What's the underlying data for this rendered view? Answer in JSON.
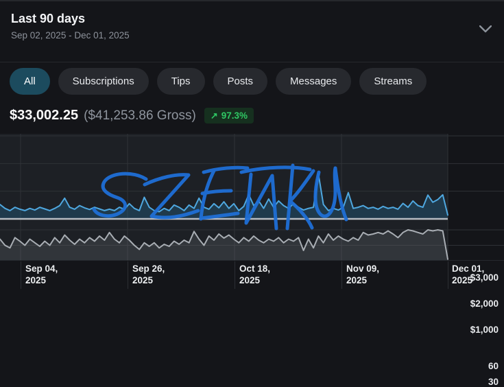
{
  "header": {
    "title": "Last 90 days",
    "date_range": "Sep 02, 2025 - Dec 01, 2025"
  },
  "tabs": [
    {
      "label": "All",
      "active": true
    },
    {
      "label": "Subscriptions",
      "active": false
    },
    {
      "label": "Tips",
      "active": false
    },
    {
      "label": "Posts",
      "active": false
    },
    {
      "label": "Messages",
      "active": false
    },
    {
      "label": "Streams",
      "active": false
    }
  ],
  "summary": {
    "net_total": "$33,002.25",
    "gross_total": "($41,253.86 Gross)",
    "change_arrow": "↗",
    "change_percent": "97.3%"
  },
  "colors": {
    "accent_tab": "#1c4b5e",
    "positive_green": "#2fc864",
    "blue_line": "#4fa8e0",
    "gray_line": "#a9aeb4",
    "baseline": "#b7bcc2",
    "plot_bg": "#1d2025",
    "grid": "#2f3237"
  },
  "chart_data": {
    "type": "line",
    "title": "",
    "x_start": "Sep 02, 2025",
    "x_end": "Dec 01, 2025",
    "x_tick_labels": [
      {
        "l1": "Sep 04,",
        "l2": "2025"
      },
      {
        "l1": "Sep 26,",
        "l2": "2025"
      },
      {
        "l1": "Oct 18,",
        "l2": "2025"
      },
      {
        "l1": "Nov 09,",
        "l2": "2025"
      },
      {
        "l1": "Dec 01,",
        "l2": "2025"
      }
    ],
    "upper": {
      "name": "daily net earnings (USD)",
      "y_tick_labels": [
        "$3,000",
        "$2,000",
        "$1,000"
      ],
      "y_tick_values": [
        3000,
        2000,
        1000
      ],
      "ylim": [
        0,
        3000
      ],
      "values": [
        520,
        380,
        300,
        420,
        350,
        300,
        380,
        320,
        420,
        360,
        300,
        380,
        480,
        750,
        420,
        350,
        480,
        400,
        340,
        420,
        360,
        300,
        350,
        300,
        420,
        350,
        550,
        380,
        300,
        780,
        420,
        300,
        260,
        380,
        300,
        500,
        420,
        300,
        500,
        380,
        750,
        420,
        350,
        550,
        400,
        620,
        380,
        550,
        300,
        450,
        880,
        480,
        650,
        380,
        720,
        420,
        650,
        480,
        380,
        550,
        420,
        320,
        380,
        420,
        1620,
        520,
        300,
        380,
        320,
        420,
        950,
        380,
        420,
        480,
        380,
        420,
        350,
        450,
        380,
        420,
        350,
        560,
        420,
        650,
        480,
        420,
        860,
        600,
        700,
        870,
        140
      ]
    },
    "lower": {
      "name": "daily transaction count",
      "y_tick_labels": [
        "60",
        "30"
      ],
      "y_tick_values": [
        60,
        30
      ],
      "ylim": [
        0,
        75
      ],
      "values": [
        42,
        30,
        25,
        45,
        38,
        30,
        42,
        35,
        28,
        38,
        30,
        45,
        35,
        50,
        40,
        32,
        42,
        35,
        45,
        38,
        48,
        40,
        55,
        42,
        35,
        48,
        40,
        30,
        22,
        35,
        28,
        35,
        25,
        32,
        28,
        38,
        32,
        40,
        35,
        57,
        42,
        30,
        48,
        40,
        52,
        44,
        50,
        42,
        35,
        45,
        38,
        48,
        40,
        35,
        42,
        38,
        45,
        35,
        42,
        38,
        45,
        20,
        42,
        25,
        48,
        35,
        52,
        40,
        48,
        42,
        38,
        45,
        40,
        55,
        50,
        52,
        55,
        52,
        58,
        52,
        45,
        55,
        60,
        58,
        55,
        52,
        60,
        58,
        60,
        58,
        3
      ]
    },
    "grid": true,
    "legend": "none"
  },
  "annotation": {
    "reads_as": "SENKU",
    "color": "#1f6fd6",
    "strokes": [
      "M213,66 C194,54 161,56 152,70 C145,82 159,89 171,93 C186,98 187,110 171,117 C156,123 141,118 137,110",
      "M211,74 C232,64 257,58 275,60 L221,120 C245,125 267,120 289,112",
      "M312,54 C301,75 295,101 293,124",
      "M297,56 C319,50 343,48 361,50",
      "M295,87 C309,84 323,83 337,83",
      "M293,123 C312,121 331,118 347,116",
      "M352,56 C386,48 426,47 452,52",
      "M366,59 L359,130 L397,61 L403,138",
      "M427,46 L419,138",
      "M457,54 C443,74 433,88 423,98 C435,108 449,123 455,137",
      "M465,56 C459,81 457,106 467,117 C477,127 489,112 489,84 C489,70 487,58 489,50",
      "M489,50 C492,75 497,106 505,125"
    ]
  }
}
